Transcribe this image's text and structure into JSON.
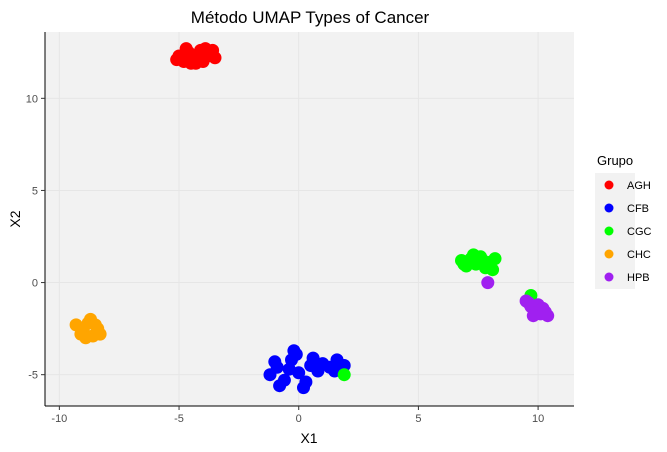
{
  "chart_data": {
    "type": "scatter",
    "title": "Método UMAP Types of Cancer",
    "xlabel": "X1",
    "ylabel": "X2",
    "xlim": [
      -10.6,
      11.5
    ],
    "ylim": [
      -6.7,
      13.6
    ],
    "xticks": [
      -10,
      -5,
      0,
      5,
      10
    ],
    "yticks": [
      -5,
      0,
      5,
      10
    ],
    "grid": true,
    "legend": {
      "title": "Grupo",
      "position": "right"
    },
    "series": [
      {
        "name": "AGH",
        "color": "#ff0000",
        "points": [
          [
            -5.0,
            12.3
          ],
          [
            -4.8,
            12.0
          ],
          [
            -4.6,
            12.5
          ],
          [
            -4.4,
            12.2
          ],
          [
            -4.2,
            12.4
          ],
          [
            -4.0,
            12.0
          ],
          [
            -3.8,
            12.3
          ],
          [
            -3.6,
            12.6
          ],
          [
            -4.5,
            11.9
          ],
          [
            -4.1,
            12.6
          ],
          [
            -3.5,
            12.2
          ],
          [
            -4.7,
            12.7
          ],
          [
            -4.3,
            11.9
          ],
          [
            -3.9,
            12.7
          ],
          [
            -5.1,
            12.1
          ]
        ]
      },
      {
        "name": "CFB",
        "color": "#0000ff",
        "points": [
          [
            -1.2,
            -5.0
          ],
          [
            -0.9,
            -4.6
          ],
          [
            -0.6,
            -5.3
          ],
          [
            -0.3,
            -4.2
          ],
          [
            0.0,
            -4.9
          ],
          [
            0.3,
            -5.4
          ],
          [
            0.5,
            -4.5
          ],
          [
            -0.1,
            -3.9
          ],
          [
            0.8,
            -4.8
          ],
          [
            1.0,
            -4.4
          ],
          [
            1.3,
            -4.6
          ],
          [
            1.6,
            -4.2
          ],
          [
            1.9,
            -4.5
          ],
          [
            -0.8,
            -5.6
          ],
          [
            0.2,
            -5.7
          ],
          [
            -0.4,
            -4.7
          ],
          [
            0.6,
            -4.1
          ],
          [
            -1.0,
            -4.3
          ],
          [
            1.5,
            -4.8
          ],
          [
            -0.2,
            -3.7
          ]
        ]
      },
      {
        "name": "CGC",
        "color": "#00ff00",
        "points": [
          [
            6.8,
            1.2
          ],
          [
            7.0,
            0.9
          ],
          [
            7.2,
            1.3
          ],
          [
            7.4,
            1.0
          ],
          [
            7.6,
            1.4
          ],
          [
            7.8,
            0.8
          ],
          [
            8.0,
            1.1
          ],
          [
            8.1,
            0.7
          ],
          [
            7.3,
            1.5
          ],
          [
            7.7,
            1.2
          ],
          [
            6.9,
            1.0
          ],
          [
            8.2,
            1.3
          ],
          [
            1.9,
            -5.0
          ],
          [
            9.7,
            -0.7
          ]
        ]
      },
      {
        "name": "CHC",
        "color": "#ffa500",
        "points": [
          [
            -9.3,
            -2.3
          ],
          [
            -9.0,
            -2.6
          ],
          [
            -8.8,
            -2.2
          ],
          [
            -8.6,
            -2.9
          ],
          [
            -8.4,
            -2.5
          ],
          [
            -8.9,
            -3.0
          ],
          [
            -8.7,
            -2.0
          ],
          [
            -8.3,
            -2.8
          ],
          [
            -9.1,
            -2.8
          ],
          [
            -8.5,
            -2.3
          ]
        ]
      },
      {
        "name": "HPB",
        "color": "#a020f0",
        "points": [
          [
            7.9,
            0.0
          ],
          [
            9.5,
            -1.0
          ],
          [
            9.7,
            -1.3
          ],
          [
            9.9,
            -1.5
          ],
          [
            10.1,
            -1.7
          ],
          [
            10.3,
            -1.6
          ],
          [
            10.0,
            -1.2
          ],
          [
            10.2,
            -1.4
          ],
          [
            9.8,
            -1.8
          ],
          [
            9.6,
            -1.1
          ],
          [
            10.4,
            -1.8
          ]
        ]
      }
    ]
  }
}
